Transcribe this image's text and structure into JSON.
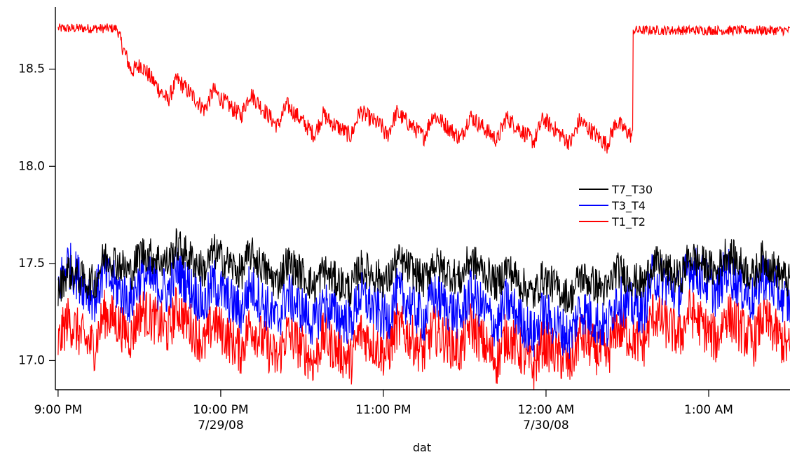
{
  "chart_data": {
    "type": "line",
    "title": "",
    "xlabel": "dat",
    "ylabel": "",
    "ylim": [
      16.85,
      18.82
    ],
    "xlim_minutes_after_9pm": [
      -1,
      270
    ],
    "yticks": [
      "17.0",
      "17.5",
      "18.0",
      "18.5"
    ],
    "xticks": [
      {
        "at": "9:00 PM",
        "label": "9:00 PM",
        "sublabel": ""
      },
      {
        "at": "10:00 PM",
        "label": "10:00 PM",
        "sublabel": "7/29/08"
      },
      {
        "at": "11:00 PM",
        "label": "11:00 PM",
        "sublabel": ""
      },
      {
        "at": "12:00 AM",
        "label": "12:00 AM",
        "sublabel": "7/30/08"
      },
      {
        "at": "1:00 AM",
        "label": "1:00 AM",
        "sublabel": ""
      }
    ],
    "x": [
      "9:00 PM",
      "9:10 PM",
      "9:20 PM",
      "9:30 PM",
      "9:40 PM",
      "9:50 PM",
      "10:00 PM",
      "10:10 PM",
      "10:20 PM",
      "10:30 PM",
      "10:40 PM",
      "10:50 PM",
      "11:00 PM",
      "11:10 PM",
      "11:20 PM",
      "11:30 PM",
      "11:40 PM",
      "11:50 PM",
      "12:00 AM",
      "12:10 AM",
      "12:20 AM",
      "12:30 AM",
      "12:40 AM",
      "12:50 AM",
      "1:00 AM",
      "1:10 AM",
      "1:20 AM",
      "1:30 AM"
    ],
    "legend_position": "right, middle",
    "grid": false,
    "series": [
      {
        "name": "T7_T30",
        "color": "#000000",
        "values": [
          17.35,
          17.37,
          17.45,
          17.45,
          17.5,
          17.47,
          17.45,
          17.45,
          17.4,
          17.4,
          17.35,
          17.37,
          17.4,
          17.42,
          17.4,
          17.42,
          17.4,
          17.35,
          17.32,
          17.32,
          17.35,
          17.37,
          17.4,
          17.42,
          17.45,
          17.45,
          17.42,
          17.4
        ]
      },
      {
        "name": "T3_T4",
        "color": "#0000ff",
        "values": [
          17.38,
          17.33,
          17.3,
          17.3,
          17.35,
          17.3,
          17.25,
          17.25,
          17.2,
          17.2,
          17.15,
          17.2,
          17.2,
          17.22,
          17.2,
          17.22,
          17.18,
          17.15,
          17.1,
          17.12,
          17.15,
          17.2,
          17.3,
          17.35,
          17.35,
          17.32,
          17.3,
          17.28
        ]
      },
      {
        "name": "T1_T2",
        "color": "#ff0000",
        "values": [
          17.08,
          17.05,
          17.12,
          17.12,
          17.15,
          17.1,
          17.05,
          17.05,
          17.0,
          17.0,
          16.98,
          17.0,
          17.02,
          17.05,
          17.02,
          17.05,
          17.0,
          16.98,
          16.95,
          16.98,
          17.0,
          17.05,
          17.1,
          17.12,
          17.1,
          17.1,
          17.08,
          17.05
        ]
      }
    ],
    "annotations": [
      {
        "series": "T1_T2",
        "values": [
          18.7,
          18.72,
          18.72,
          18.45,
          18.38,
          18.35,
          18.3,
          18.3,
          18.25,
          18.22,
          18.18,
          18.2,
          18.22,
          18.25,
          18.22,
          18.22,
          18.2,
          18.18,
          18.15,
          18.15,
          18.18,
          18.2,
          18.72,
          18.7,
          18.7,
          18.7,
          18.7,
          18.7
        ]
      }
    ],
    "legend": [
      {
        "label": "T7_T30",
        "color": "#000000"
      },
      {
        "label": "T3_T4",
        "color": "#0000ff"
      },
      {
        "label": "T1_T2",
        "color": "#ff0000"
      }
    ]
  }
}
